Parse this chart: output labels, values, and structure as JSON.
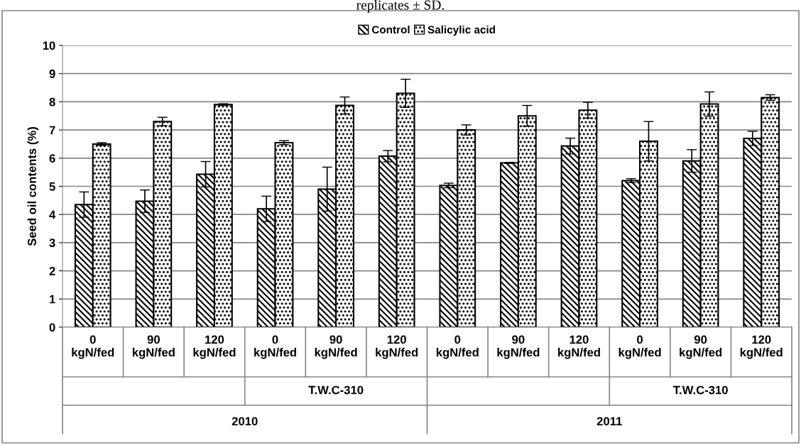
{
  "chart_data": {
    "type": "bar",
    "ylabel": "Seed oil contents (%)",
    "categories": [
      "0\nkgN/fed",
      "90\nkgN/fed",
      "120\nkgN/fed",
      "0\nkgN/fed",
      "90\nkgN/fed",
      "120\nkgN/fed",
      "0\nkgN/fed",
      "90\nkgN/fed",
      "120\nkgN/fed",
      "0\nkgN/fed",
      "90\nkgN/fed",
      "120\nkgN/fed"
    ],
    "series": [
      {
        "name": "Control",
        "color": "#000000",
        "values": [
          4.35,
          4.47,
          5.43,
          4.2,
          4.9,
          6.07,
          5.03,
          5.83,
          6.43,
          5.2,
          5.9,
          6.7
        ],
        "errors": [
          0.45,
          0.4,
          0.45,
          0.45,
          0.78,
          0.2,
          0.08,
          0.02,
          0.28,
          0.07,
          0.4,
          0.25
        ]
      },
      {
        "name": "Salicylic acid",
        "color": "#000000",
        "values": [
          6.5,
          7.3,
          7.9,
          6.55,
          7.87,
          8.3,
          7.0,
          7.5,
          7.7,
          6.6,
          7.92,
          8.15
        ],
        "errors": [
          0.05,
          0.15,
          0.03,
          0.07,
          0.3,
          0.5,
          0.18,
          0.37,
          0.28,
          0.7,
          0.43,
          0.1
        ]
      }
    ],
    "ylim": [
      0,
      10
    ],
    "yticks": [
      0,
      1,
      2,
      3,
      4,
      5,
      6,
      7,
      8,
      9,
      10
    ],
    "grid": "y",
    "legend": "top",
    "annotations": [
      "replicates ± SD.",
      null,
      "T.W.C-310",
      null,
      "T.W.C-310",
      "2010",
      "2011"
    ]
  }
}
